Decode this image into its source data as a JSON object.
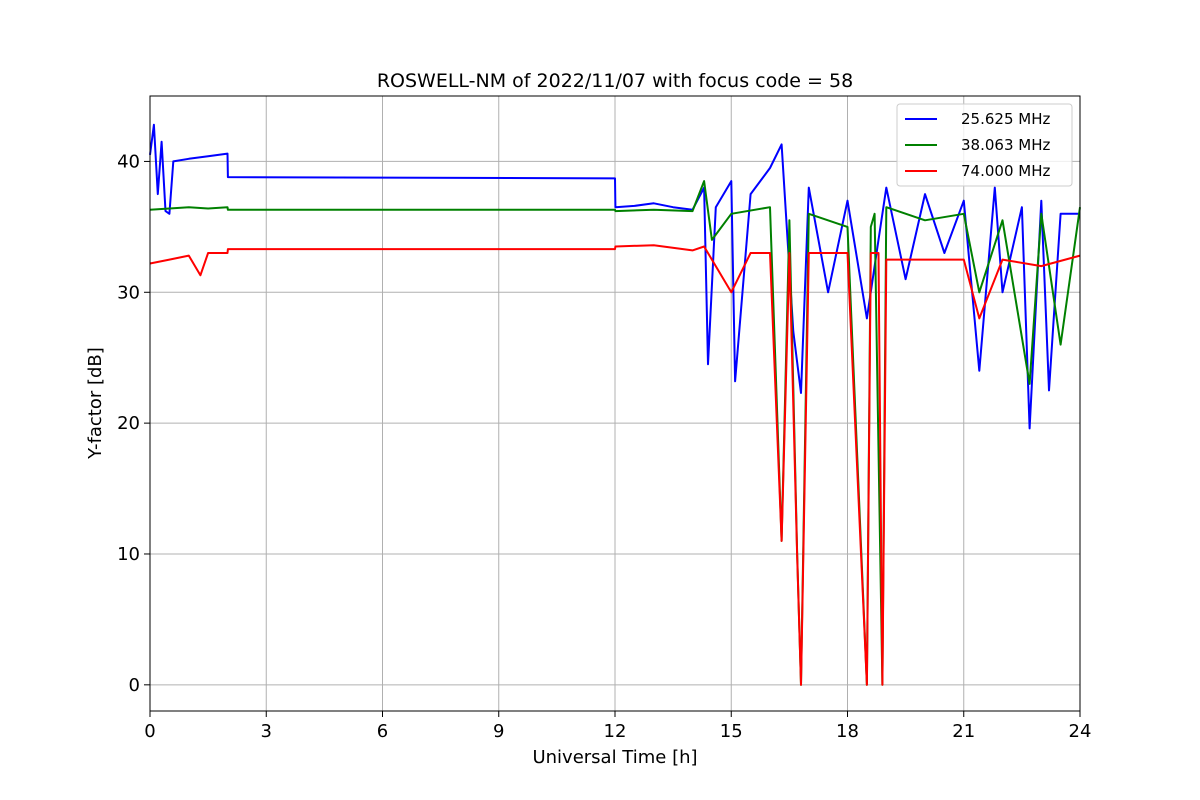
{
  "chart_data": {
    "type": "line",
    "title": "ROSWELL-NM of 2022/11/07 with focus code = 58",
    "xlabel": "Universal Time [h]",
    "ylabel": "Y-factor [dB]",
    "xlim": [
      0,
      24
    ],
    "ylim": [
      -2,
      45
    ],
    "xticks": [
      0,
      3,
      6,
      9,
      12,
      15,
      18,
      21,
      24
    ],
    "yticks": [
      0,
      10,
      20,
      30,
      40
    ],
    "grid": true,
    "legend_position": "top-right",
    "series": [
      {
        "name": "25.625 MHz",
        "color": "#0000ff",
        "x": [
          0,
          0.1,
          0.2,
          0.3,
          0.4,
          0.5,
          0.6,
          1.0,
          1.5,
          2.0,
          2.01,
          12.0,
          12.01,
          12.5,
          13.0,
          13.5,
          14.0,
          14.3,
          14.4,
          14.6,
          15.0,
          15.1,
          15.5,
          16.0,
          16.3,
          16.6,
          16.8,
          17.0,
          17.5,
          18.0,
          18.5,
          18.8,
          19.0,
          19.5,
          20.0,
          20.5,
          21.0,
          21.4,
          21.8,
          22.0,
          22.5,
          22.7,
          23.0,
          23.2,
          23.5,
          24.0
        ],
        "y": [
          40.5,
          42.8,
          37.5,
          41.5,
          36.2,
          36.0,
          40.0,
          40.2,
          40.4,
          40.6,
          38.8,
          38.7,
          36.5,
          36.6,
          36.8,
          36.5,
          36.3,
          38.0,
          24.5,
          36.5,
          38.5,
          23.2,
          37.5,
          39.5,
          41.3,
          27.0,
          22.3,
          38.0,
          30.0,
          37.0,
          28.0,
          34.0,
          38.0,
          31.0,
          37.5,
          33.0,
          37.0,
          24.0,
          38.0,
          30.0,
          36.5,
          19.6,
          37.0,
          22.5,
          36.0,
          36.0
        ]
      },
      {
        "name": "38.063 MHz",
        "color": "#008000",
        "x": [
          0,
          0.5,
          1.0,
          1.5,
          2.0,
          2.01,
          12.0,
          12.01,
          13.0,
          14.0,
          14.3,
          14.5,
          15.0,
          16.0,
          16.3,
          16.5,
          16.7,
          16.8,
          17.0,
          18.0,
          18.5,
          18.6,
          18.7,
          18.9,
          19.0,
          20.0,
          21.0,
          21.4,
          22.0,
          22.7,
          23.0,
          23.5,
          24.0
        ],
        "y": [
          36.3,
          36.4,
          36.5,
          36.4,
          36.5,
          36.3,
          36.3,
          36.2,
          36.3,
          36.2,
          38.5,
          34.0,
          36.0,
          36.5,
          11.0,
          35.5,
          10.2,
          0.0,
          36.0,
          35.0,
          0.0,
          35.0,
          36.0,
          0.0,
          36.5,
          35.5,
          36.0,
          30.0,
          35.5,
          23.0,
          36.0,
          26.0,
          36.5
        ]
      },
      {
        "name": "74.000 MHz",
        "color": "#ff0000",
        "x": [
          0,
          0.5,
          1.0,
          1.3,
          1.5,
          2.0,
          2.01,
          12.0,
          12.01,
          13.0,
          14.0,
          14.3,
          15.0,
          15.5,
          16.0,
          16.3,
          16.5,
          16.7,
          16.8,
          17.0,
          18.0,
          18.5,
          18.6,
          18.8,
          18.9,
          19.0,
          20.0,
          21.0,
          21.4,
          22.0,
          23.0,
          24.0
        ],
        "y": [
          32.2,
          32.5,
          32.8,
          31.3,
          33.0,
          33.0,
          33.3,
          33.3,
          33.5,
          33.6,
          33.2,
          33.5,
          30.0,
          33.0,
          33.0,
          11.0,
          33.0,
          10.0,
          0.0,
          33.0,
          33.0,
          0.0,
          33.0,
          33.0,
          0.0,
          32.5,
          32.5,
          32.5,
          28.0,
          32.5,
          32.0,
          32.8
        ]
      }
    ]
  }
}
